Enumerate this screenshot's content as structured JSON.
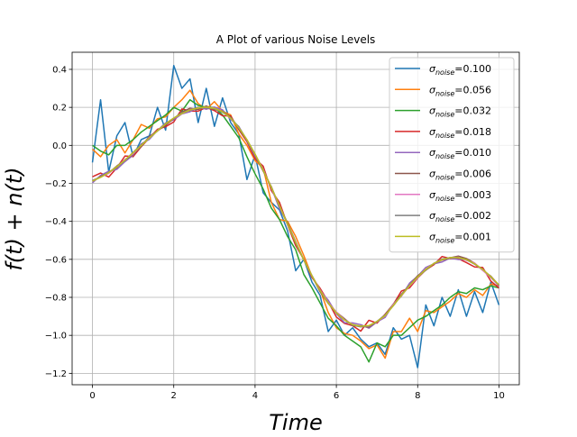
{
  "chart_data": {
    "type": "line",
    "title": "A Plot of various Noise Levels",
    "xlabel": "Time",
    "ylabel": "f(t) + n(t)",
    "xlim": [
      -0.5,
      10.5
    ],
    "ylim": [
      -1.26,
      0.49
    ],
    "xticks": [
      0,
      2,
      4,
      6,
      8,
      10
    ],
    "yticks": [
      -1.2,
      -1.0,
      -0.8,
      -0.6,
      -0.4,
      -0.2,
      0.0,
      0.2,
      0.4
    ],
    "grid": true,
    "legend_position": "top-right",
    "legend_symbol": "σ",
    "legend_subscript": "noise",
    "x": [
      0,
      0.2,
      0.4,
      0.6,
      0.8,
      1.0,
      1.2,
      1.4,
      1.6,
      1.8,
      2.0,
      2.2,
      2.4,
      2.6,
      2.8,
      3.0,
      3.2,
      3.4,
      3.6,
      3.8,
      4.0,
      4.2,
      4.4,
      4.6,
      4.8,
      5.0,
      5.2,
      5.4,
      5.6,
      5.8,
      6.0,
      6.2,
      6.4,
      6.6,
      6.8,
      7.0,
      7.2,
      7.4,
      7.6,
      7.8,
      8.0,
      8.2,
      8.4,
      8.6,
      8.8,
      9.0,
      9.2,
      9.4,
      9.6,
      9.8,
      10.0
    ],
    "series": [
      {
        "name": "=0.100",
        "color": "#1f77b4",
        "values": [
          -0.09,
          0.24,
          -0.14,
          0.05,
          0.12,
          -0.06,
          0.03,
          0.05,
          0.2,
          0.08,
          0.42,
          0.3,
          0.35,
          0.12,
          0.3,
          0.1,
          0.25,
          0.12,
          0.06,
          -0.18,
          -0.05,
          -0.25,
          -0.3,
          -0.34,
          -0.45,
          -0.66,
          -0.6,
          -0.72,
          -0.79,
          -0.98,
          -0.92,
          -1.0,
          -0.96,
          -1.02,
          -1.06,
          -1.04,
          -1.1,
          -0.96,
          -1.02,
          -1.0,
          -1.17,
          -0.84,
          -0.95,
          -0.8,
          -0.9,
          -0.76,
          -0.9,
          -0.77,
          -0.88,
          -0.72,
          -0.84
        ]
      },
      {
        "name": "=0.056",
        "color": "#ff7f0e",
        "values": [
          -0.02,
          -0.06,
          0.0,
          0.03,
          -0.04,
          0.03,
          0.11,
          0.09,
          0.14,
          0.15,
          0.2,
          0.24,
          0.29,
          0.22,
          0.19,
          0.23,
          0.18,
          0.16,
          0.06,
          0.0,
          -0.08,
          -0.12,
          -0.3,
          -0.39,
          -0.4,
          -0.48,
          -0.58,
          -0.69,
          -0.76,
          -0.88,
          -0.96,
          -0.99,
          -1.0,
          -1.03,
          -1.07,
          -1.05,
          -1.12,
          -0.98,
          -0.98,
          -0.91,
          -0.98,
          -0.87,
          -0.88,
          -0.85,
          -0.82,
          -0.78,
          -0.8,
          -0.76,
          -0.79,
          -0.73,
          -0.74
        ]
      },
      {
        "name": "=0.032",
        "color": "#2ca02c",
        "values": [
          0.0,
          -0.03,
          -0.05,
          0.0,
          0.0,
          0.03,
          0.07,
          0.1,
          0.13,
          0.16,
          0.2,
          0.18,
          0.24,
          0.21,
          0.2,
          0.2,
          0.16,
          0.1,
          0.04,
          -0.06,
          -0.15,
          -0.23,
          -0.33,
          -0.39,
          -0.48,
          -0.55,
          -0.68,
          -0.75,
          -0.83,
          -0.91,
          -0.95,
          -1.0,
          -1.03,
          -1.06,
          -1.14,
          -1.04,
          -1.06,
          -1.0,
          -1.0,
          -0.96,
          -0.92,
          -0.9,
          -0.87,
          -0.84,
          -0.8,
          -0.77,
          -0.78,
          -0.75,
          -0.76,
          -0.74,
          -0.75
        ]
      }
    ],
    "smooth_series": [
      {
        "name": "=0.018",
        "color": "#d62728",
        "noise": 0.018
      },
      {
        "name": "=0.010",
        "color": "#9467bd",
        "noise": 0.01
      },
      {
        "name": "=0.006",
        "color": "#8c564b",
        "noise": 0.006
      },
      {
        "name": "=0.003",
        "color": "#e377c2",
        "noise": 0.003
      },
      {
        "name": "=0.002",
        "color": "#7f7f7f",
        "noise": 0.002
      },
      {
        "name": "=0.001",
        "color": "#bcbd22",
        "noise": 0.001
      }
    ]
  }
}
